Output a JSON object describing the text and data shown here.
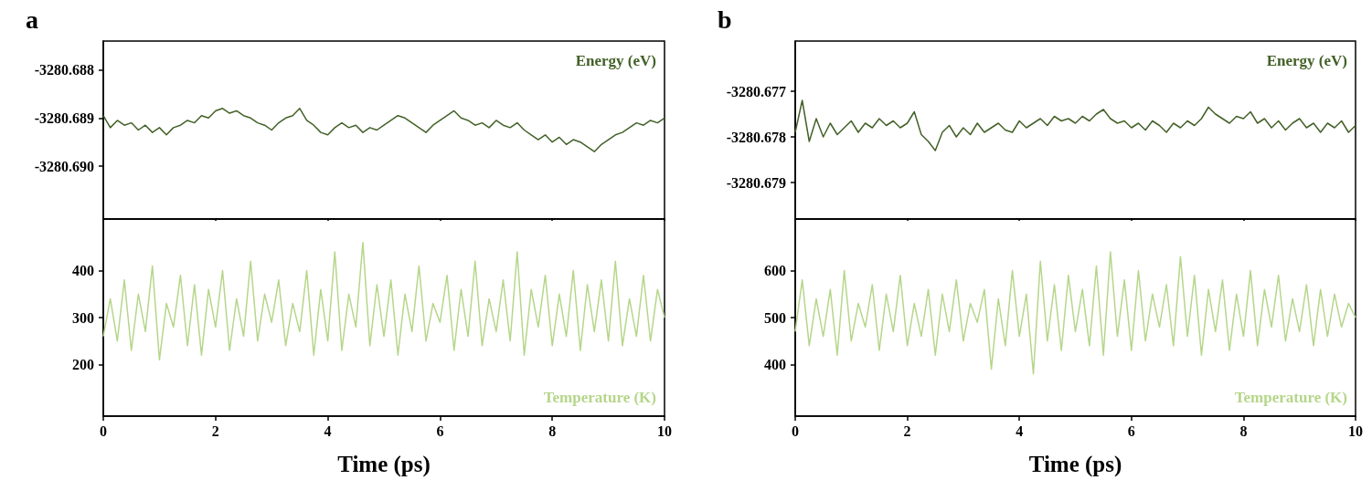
{
  "chart_data": [
    {
      "type": "line",
      "title": "a",
      "xlim": [
        0,
        10
      ],
      "xticks": [
        0,
        2,
        4,
        6,
        8,
        10
      ],
      "ylim": [
        -3280.6911,
        -3280.6874
      ],
      "yticks": [
        -3280.688,
        -3280.689,
        {
          "value": -3280.69,
          "label": "-3280.690"
        }
      ],
      "tick_labels": "y",
      "legend": "top right",
      "grid": false,
      "x": [
        0,
        0.125,
        0.25,
        0.375,
        0.5,
        0.625,
        0.75,
        0.875,
        1,
        1.125,
        1.25,
        1.375,
        1.5,
        1.625,
        1.75,
        1.875,
        2,
        2.125,
        2.25,
        2.375,
        2.5,
        2.625,
        2.75,
        2.875,
        3,
        3.125,
        3.25,
        3.375,
        3.5,
        3.625,
        3.75,
        3.875,
        4,
        4.125,
        4.25,
        4.375,
        4.5,
        4.625,
        4.75,
        4.875,
        5,
        5.125,
        5.25,
        5.375,
        5.5,
        5.625,
        5.75,
        5.875,
        6,
        6.125,
        6.25,
        6.375,
        6.5,
        6.625,
        6.75,
        6.875,
        7,
        7.125,
        7.25,
        7.375,
        7.5,
        7.625,
        7.75,
        7.875,
        8,
        8.125,
        8.25,
        8.375,
        8.5,
        8.625,
        8.75,
        8.875,
        9,
        9.125,
        9.25,
        9.375,
        9.5,
        9.625,
        9.75,
        9.875,
        10
      ],
      "series": [
        {
          "name": "Energy (eV)",
          "color": "#436128",
          "values": [
            -3280.68895,
            -3280.6892,
            -3280.68905,
            -3280.68915,
            -3280.6891,
            -3280.68925,
            -3280.68915,
            -3280.6893,
            -3280.6892,
            -3280.68935,
            -3280.6892,
            -3280.68915,
            -3280.68905,
            -3280.6891,
            -3280.68895,
            -3280.689,
            -3280.68885,
            -3280.6888,
            -3280.6889,
            -3280.68885,
            -3280.68895,
            -3280.689,
            -3280.6891,
            -3280.68915,
            -3280.68925,
            -3280.6891,
            -3280.689,
            -3280.68895,
            -3280.6888,
            -3280.68905,
            -3280.68915,
            -3280.6893,
            -3280.68935,
            -3280.6892,
            -3280.6891,
            -3280.6892,
            -3280.68915,
            -3280.6893,
            -3280.6892,
            -3280.68925,
            -3280.68915,
            -3280.68905,
            -3280.68895,
            -3280.689,
            -3280.6891,
            -3280.6892,
            -3280.6893,
            -3280.68915,
            -3280.68905,
            -3280.68895,
            -3280.68885,
            -3280.689,
            -3280.68905,
            -3280.68915,
            -3280.6891,
            -3280.6892,
            -3280.68905,
            -3280.68915,
            -3280.6892,
            -3280.6891,
            -3280.68925,
            -3280.68935,
            -3280.68945,
            -3280.68935,
            -3280.6895,
            -3280.6894,
            -3280.68955,
            -3280.68945,
            -3280.6895,
            -3280.6896,
            -3280.6897,
            -3280.68955,
            -3280.68945,
            -3280.68935,
            -3280.6893,
            -3280.6892,
            -3280.6891,
            -3280.68915,
            -3280.68905,
            -3280.6891,
            -3280.689
          ]
        }
      ]
    },
    {
      "type": "line",
      "xlabel": "Time (ps)",
      "xlim": [
        0,
        10
      ],
      "xticks": [
        0,
        2,
        4,
        6,
        8,
        10
      ],
      "ylim": [
        90,
        510
      ],
      "yticks": [
        200,
        300,
        400
      ],
      "legend": "bottom right",
      "grid": false,
      "x": [
        0,
        0.125,
        0.25,
        0.375,
        0.5,
        0.625,
        0.75,
        0.875,
        1,
        1.125,
        1.25,
        1.375,
        1.5,
        1.625,
        1.75,
        1.875,
        2,
        2.125,
        2.25,
        2.375,
        2.5,
        2.625,
        2.75,
        2.875,
        3,
        3.125,
        3.25,
        3.375,
        3.5,
        3.625,
        3.75,
        3.875,
        4,
        4.125,
        4.25,
        4.375,
        4.5,
        4.625,
        4.75,
        4.875,
        5,
        5.125,
        5.25,
        5.375,
        5.5,
        5.625,
        5.75,
        5.875,
        6,
        6.125,
        6.25,
        6.375,
        6.5,
        6.625,
        6.75,
        6.875,
        7,
        7.125,
        7.25,
        7.375,
        7.5,
        7.625,
        7.75,
        7.875,
        8,
        8.125,
        8.25,
        8.375,
        8.5,
        8.625,
        8.75,
        8.875,
        9,
        9.125,
        9.25,
        9.375,
        9.5,
        9.625,
        9.75,
        9.875,
        10
      ],
      "series": [
        {
          "name": "Temperature (K)",
          "color": "#b5d68a",
          "values": [
            260,
            340,
            250,
            380,
            230,
            350,
            270,
            410,
            210,
            330,
            280,
            390,
            240,
            370,
            220,
            360,
            280,
            400,
            230,
            340,
            260,
            420,
            250,
            350,
            290,
            380,
            240,
            330,
            270,
            400,
            220,
            360,
            250,
            440,
            230,
            350,
            280,
            460,
            240,
            370,
            260,
            380,
            220,
            350,
            270,
            410,
            250,
            330,
            290,
            390,
            230,
            360,
            260,
            420,
            240,
            340,
            270,
            380,
            250,
            440,
            220,
            360,
            280,
            390,
            240,
            350,
            260,
            400,
            230,
            370,
            270,
            380,
            250,
            420,
            240,
            340,
            260,
            390,
            250,
            360,
            300
          ]
        }
      ]
    },
    {
      "type": "line",
      "title": "b",
      "xlim": [
        0,
        10
      ],
      "xticks": [
        0,
        2,
        4,
        6,
        8,
        10
      ],
      "ylim": [
        -3280.6798,
        -3280.6759
      ],
      "yticks": [
        -3280.677,
        -3280.678,
        -3280.679
      ],
      "tick_labels": "y",
      "legend": "top right",
      "grid": false,
      "x": [
        0,
        0.125,
        0.25,
        0.375,
        0.5,
        0.625,
        0.75,
        0.875,
        1,
        1.125,
        1.25,
        1.375,
        1.5,
        1.625,
        1.75,
        1.875,
        2,
        2.125,
        2.25,
        2.375,
        2.5,
        2.625,
        2.75,
        2.875,
        3,
        3.125,
        3.25,
        3.375,
        3.5,
        3.625,
        3.75,
        3.875,
        4,
        4.125,
        4.25,
        4.375,
        4.5,
        4.625,
        4.75,
        4.875,
        5,
        5.125,
        5.25,
        5.375,
        5.5,
        5.625,
        5.75,
        5.875,
        6,
        6.125,
        6.25,
        6.375,
        6.5,
        6.625,
        6.75,
        6.875,
        7,
        7.125,
        7.25,
        7.375,
        7.5,
        7.625,
        7.75,
        7.875,
        8,
        8.125,
        8.25,
        8.375,
        8.5,
        8.625,
        8.75,
        8.875,
        9,
        9.125,
        9.25,
        9.375,
        9.5,
        9.625,
        9.75,
        9.875,
        10
      ],
      "series": [
        {
          "name": "Energy (eV)",
          "color": "#436128",
          "values": [
            -3280.6779,
            -3280.6772,
            -3280.6781,
            -3280.6776,
            -3280.678,
            -3280.6777,
            -3280.67795,
            -3280.6778,
            -3280.67765,
            -3280.6779,
            -3280.6777,
            -3280.6778,
            -3280.6776,
            -3280.67775,
            -3280.67765,
            -3280.6778,
            -3280.6777,
            -3280.67745,
            -3280.67795,
            -3280.6781,
            -3280.6783,
            -3280.6779,
            -3280.67775,
            -3280.678,
            -3280.6778,
            -3280.67795,
            -3280.6777,
            -3280.6779,
            -3280.6778,
            -3280.6777,
            -3280.67785,
            -3280.6779,
            -3280.67765,
            -3280.6778,
            -3280.6777,
            -3280.6776,
            -3280.67775,
            -3280.67755,
            -3280.67765,
            -3280.6776,
            -3280.6777,
            -3280.67755,
            -3280.67765,
            -3280.6775,
            -3280.6774,
            -3280.6776,
            -3280.6777,
            -3280.67765,
            -3280.6778,
            -3280.6777,
            -3280.67785,
            -3280.67765,
            -3280.67775,
            -3280.6779,
            -3280.6777,
            -3280.6778,
            -3280.67765,
            -3280.67775,
            -3280.6776,
            -3280.67735,
            -3280.6775,
            -3280.6776,
            -3280.6777,
            -3280.67755,
            -3280.6776,
            -3280.67745,
            -3280.6777,
            -3280.6776,
            -3280.6778,
            -3280.67765,
            -3280.67785,
            -3280.6777,
            -3280.6776,
            -3280.6778,
            -3280.6777,
            -3280.6779,
            -3280.6777,
            -3280.6778,
            -3280.67765,
            -3280.6779,
            -3280.67775
          ]
        }
      ]
    },
    {
      "type": "line",
      "xlabel": "Time (ps)",
      "xlim": [
        0,
        10
      ],
      "xticks": [
        0,
        2,
        4,
        6,
        8,
        10
      ],
      "ylim": [
        290,
        710
      ],
      "yticks": [
        400,
        500,
        600
      ],
      "legend": "bottom right",
      "grid": false,
      "x": [
        0,
        0.125,
        0.25,
        0.375,
        0.5,
        0.625,
        0.75,
        0.875,
        1,
        1.125,
        1.25,
        1.375,
        1.5,
        1.625,
        1.75,
        1.875,
        2,
        2.125,
        2.25,
        2.375,
        2.5,
        2.625,
        2.75,
        2.875,
        3,
        3.125,
        3.25,
        3.375,
        3.5,
        3.625,
        3.75,
        3.875,
        4,
        4.125,
        4.25,
        4.375,
        4.5,
        4.625,
        4.75,
        4.875,
        5,
        5.125,
        5.25,
        5.375,
        5.5,
        5.625,
        5.75,
        5.875,
        6,
        6.125,
        6.25,
        6.375,
        6.5,
        6.625,
        6.75,
        6.875,
        7,
        7.125,
        7.25,
        7.375,
        7.5,
        7.625,
        7.75,
        7.875,
        8,
        8.125,
        8.25,
        8.375,
        8.5,
        8.625,
        8.75,
        8.875,
        9,
        9.125,
        9.25,
        9.375,
        9.5,
        9.625,
        9.75,
        9.875,
        10
      ],
      "series": [
        {
          "name": "Temperature (K)",
          "color": "#b5d68a",
          "values": [
            470,
            580,
            440,
            540,
            460,
            560,
            420,
            600,
            450,
            530,
            480,
            570,
            430,
            550,
            470,
            590,
            440,
            530,
            460,
            560,
            420,
            550,
            470,
            580,
            450,
            530,
            490,
            560,
            390,
            540,
            440,
            600,
            460,
            550,
            380,
            620,
            450,
            570,
            430,
            590,
            470,
            560,
            440,
            610,
            420,
            640,
            460,
            580,
            430,
            600,
            450,
            550,
            480,
            570,
            440,
            630,
            460,
            590,
            420,
            560,
            470,
            580,
            430,
            550,
            460,
            600,
            440,
            560,
            480,
            590,
            450,
            540,
            470,
            570,
            440,
            560,
            460,
            550,
            480,
            530,
            500
          ]
        }
      ]
    }
  ]
}
